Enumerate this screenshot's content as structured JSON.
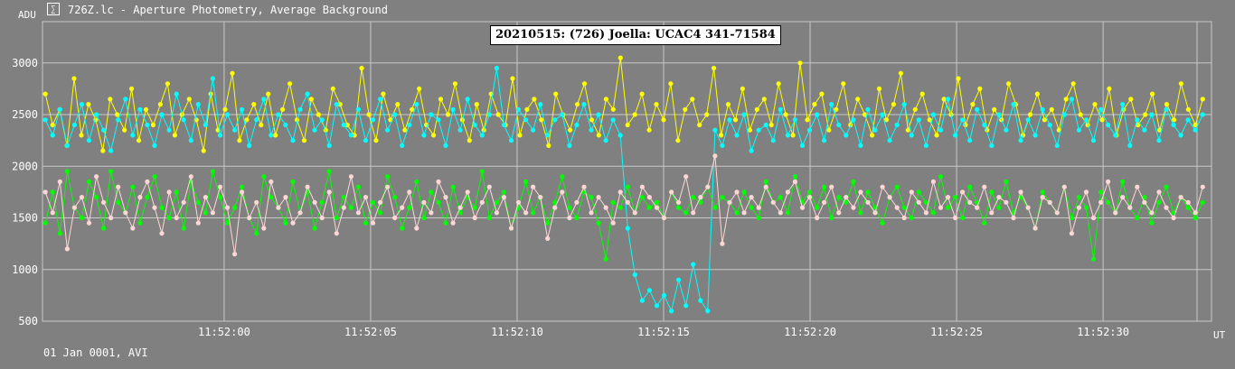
{
  "window": {
    "icon": "lightcurve-icon",
    "title": "726Z.lc - Aperture Photometry, Average Background"
  },
  "footer": "01 Jan 0001, AVI",
  "chart_data": {
    "type": "line",
    "title": "20210515: (726) Joella: UCAC4 341-71584",
    "ylabel": "ADU",
    "xlabel": "UT",
    "xlim": [
      -6.2,
      33.7
    ],
    "ylim": [
      500,
      3400
    ],
    "grid": true,
    "x_ticks": [
      {
        "value": 0,
        "label": "11:52:00"
      },
      {
        "value": 5,
        "label": "11:52:05"
      },
      {
        "value": 10,
        "label": "11:52:10"
      },
      {
        "value": 15,
        "label": "11:52:15"
      },
      {
        "value": 20,
        "label": "11:52:20"
      },
      {
        "value": 25,
        "label": "11:52:25"
      },
      {
        "value": 30,
        "label": "11:52:30"
      }
    ],
    "y_ticks": [
      500,
      1000,
      1500,
      2000,
      2500,
      3000
    ],
    "series": [
      {
        "color": "#ffff00",
        "values": [
          2700,
          2400,
          2550,
          2200,
          2850,
          2300,
          2600,
          2450,
          2150,
          2650,
          2500,
          2350,
          2750,
          2250,
          2550,
          2400,
          2600,
          2800,
          2300,
          2500,
          2650,
          2450,
          2150,
          2700,
          2350,
          2550,
          2900,
          2250,
          2450,
          2600,
          2400,
          2700,
          2300,
          2550,
          2800,
          2450,
          2250,
          2650,
          2500,
          2350,
          2750,
          2600,
          2400,
          2300,
          2950,
          2500,
          2250,
          2700,
          2450,
          2600,
          2350,
          2550,
          2750,
          2400,
          2300,
          2650,
          2500,
          2800,
          2450,
          2250,
          2600,
          2350,
          2700,
          2500,
          2400,
          2850,
          2300,
          2550,
          2650,
          2450,
          2200,
          2700,
          2500,
          2350,
          2600,
          2800,
          2450,
          2300,
          2650,
          2550,
          3050,
          2400,
          2500,
          2700,
          2350,
          2600,
          2450,
          2800,
          2250,
          2550,
          2650,
          2400,
          2500,
          2950,
          2300,
          2600,
          2450,
          2750,
          2350,
          2550,
          2650,
          2400,
          2800,
          2500,
          2300,
          3000,
          2450,
          2600,
          2700,
          2350,
          2550,
          2800,
          2400,
          2650,
          2500,
          2300,
          2750,
          2450,
          2600,
          2900,
          2350,
          2550,
          2700,
          2450,
          2300,
          2650,
          2500,
          2850,
          2400,
          2600,
          2750,
          2350,
          2550,
          2450,
          2800,
          2600,
          2300,
          2500,
          2700,
          2450,
          2550,
          2350,
          2650,
          2800,
          2500,
          2400,
          2600,
          2450,
          2750,
          2300,
          2550,
          2650,
          2400,
          2500,
          2700,
          2350,
          2600,
          2450,
          2800,
          2550,
          2400,
          2650
        ]
      },
      {
        "color": "#00ffff",
        "values": [
          2450,
          2300,
          2550,
          2200,
          2400,
          2600,
          2250,
          2500,
          2350,
          2150,
          2450,
          2650,
          2300,
          2550,
          2400,
          2200,
          2500,
          2350,
          2700,
          2450,
          2250,
          2600,
          2400,
          2850,
          2300,
          2500,
          2350,
          2550,
          2200,
          2450,
          2650,
          2300,
          2500,
          2400,
          2250,
          2550,
          2700,
          2350,
          2450,
          2200,
          2600,
          2400,
          2300,
          2550,
          2250,
          2450,
          2650,
          2350,
          2500,
          2200,
          2400,
          2600,
          2300,
          2500,
          2450,
          2200,
          2550,
          2350,
          2650,
          2400,
          2300,
          2500,
          2950,
          2400,
          2250,
          2550,
          2450,
          2350,
          2600,
          2300,
          2450,
          2500,
          2200,
          2400,
          2600,
          2350,
          2500,
          2250,
          2450,
          2300,
          1400,
          950,
          700,
          800,
          650,
          750,
          600,
          900,
          650,
          1050,
          700,
          600,
          2350,
          2200,
          2450,
          2300,
          2500,
          2150,
          2350,
          2400,
          2250,
          2550,
          2300,
          2450,
          2200,
          2350,
          2500,
          2250,
          2600,
          2400,
          2300,
          2450,
          2200,
          2550,
          2350,
          2500,
          2250,
          2400,
          2600,
          2300,
          2450,
          2200,
          2500,
          2350,
          2650,
          2300,
          2450,
          2250,
          2550,
          2400,
          2200,
          2500,
          2350,
          2600,
          2250,
          2450,
          2300,
          2550,
          2400,
          2200,
          2500,
          2650,
          2350,
          2450,
          2250,
          2550,
          2400,
          2300,
          2600,
          2200,
          2450,
          2350,
          2500,
          2250,
          2550,
          2400,
          2300,
          2450,
          2350,
          2500
        ]
      },
      {
        "color": "#00ff00",
        "values": [
          1450,
          1750,
          1350,
          1950,
          1600,
          1500,
          1850,
          1700,
          1400,
          1950,
          1650,
          1550,
          1800,
          1450,
          1700,
          1900,
          1600,
          1500,
          1750,
          1400,
          1850,
          1650,
          1550,
          1950,
          1700,
          1450,
          1600,
          1800,
          1500,
          1350,
          1900,
          1700,
          1600,
          1450,
          1850,
          1550,
          1750,
          1400,
          1650,
          1950,
          1500,
          1700,
          1600,
          1800,
          1450,
          1650,
          1550,
          1900,
          1700,
          1400,
          1600,
          1850,
          1500,
          1750,
          1650,
          1450,
          1800,
          1550,
          1700,
          1600,
          1950,
          1500,
          1650,
          1750,
          1400,
          1600,
          1850,
          1550,
          1700,
          1450,
          1650,
          1900,
          1600,
          1500,
          1750,
          1700,
          1450,
          1100,
          1650,
          1600,
          1800,
          1550,
          1700,
          1600,
          1650,
          1500,
          1750,
          1600,
          1550,
          1700,
          1650,
          1800,
          1600,
          1700,
          1650,
          1550,
          1750,
          1600,
          1500,
          1850,
          1650,
          1700,
          1550,
          1900,
          1650,
          1750,
          1600,
          1800,
          1500,
          1700,
          1650,
          1850,
          1550,
          1750,
          1600,
          1450,
          1700,
          1800,
          1600,
          1500,
          1750,
          1650,
          1550,
          1900,
          1600,
          1700,
          1500,
          1800,
          1650,
          1450,
          1750,
          1600,
          1850,
          1550,
          1700,
          1600,
          1400,
          1750,
          1650,
          1550,
          1800,
          1500,
          1700,
          1600,
          1100,
          1750,
          1650,
          1550,
          1850,
          1600,
          1500,
          1700,
          1450,
          1650,
          1800,
          1550,
          1700,
          1600,
          1500,
          1650
        ]
      },
      {
        "color": "#ffd6d6",
        "values": [
          1750,
          1550,
          1850,
          1200,
          1600,
          1700,
          1450,
          1900,
          1650,
          1500,
          1800,
          1550,
          1400,
          1700,
          1850,
          1600,
          1350,
          1750,
          1500,
          1650,
          1900,
          1450,
          1700,
          1550,
          1800,
          1600,
          1150,
          1750,
          1500,
          1650,
          1400,
          1850,
          1600,
          1700,
          1450,
          1550,
          1800,
          1650,
          1500,
          1750,
          1350,
          1600,
          1900,
          1550,
          1700,
          1450,
          1650,
          1800,
          1500,
          1600,
          1750,
          1400,
          1650,
          1550,
          1850,
          1700,
          1450,
          1600,
          1750,
          1500,
          1650,
          1800,
          1550,
          1700,
          1400,
          1650,
          1550,
          1800,
          1700,
          1300,
          1600,
          1750,
          1500,
          1650,
          1800,
          1550,
          1700,
          1600,
          1450,
          1750,
          1650,
          1550,
          1800,
          1700,
          1600,
          1500,
          1750,
          1650,
          1900,
          1550,
          1700,
          1800,
          2100,
          1250,
          1650,
          1750,
          1550,
          1700,
          1600,
          1800,
          1650,
          1550,
          1750,
          1850,
          1600,
          1700,
          1500,
          1650,
          1800,
          1550,
          1700,
          1600,
          1750,
          1650,
          1550,
          1800,
          1700,
          1600,
          1500,
          1750,
          1650,
          1550,
          1850,
          1600,
          1700,
          1500,
          1750,
          1650,
          1600,
          1800,
          1550,
          1700,
          1650,
          1500,
          1750,
          1600,
          1400,
          1700,
          1650,
          1550,
          1800,
          1350,
          1600,
          1750,
          1500,
          1650,
          1850,
          1550,
          1700,
          1600,
          1800,
          1650,
          1550,
          1750,
          1600,
          1500,
          1700,
          1650,
          1550,
          1800
        ]
      }
    ]
  }
}
